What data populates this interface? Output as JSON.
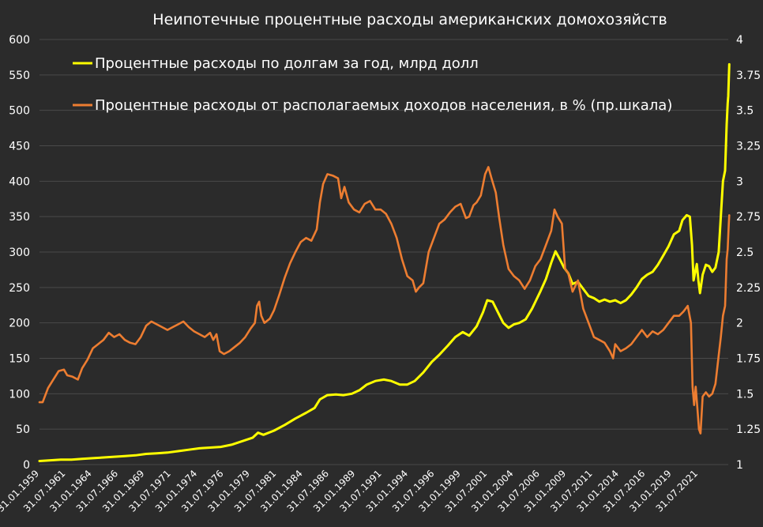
{
  "chart_data": {
    "type": "line",
    "title": "Неипотечные процентные расходы американских домохозяйств",
    "grid": true,
    "legend_placement": "top-left",
    "y_left": {
      "min": 0,
      "max": 600,
      "ticks": [
        "0",
        "50",
        "100",
        "150",
        "200",
        "250",
        "300",
        "350",
        "400",
        "450",
        "500",
        "550",
        "600"
      ]
    },
    "y_right": {
      "min": 1,
      "max": 4,
      "ticks": [
        "1",
        "1.25",
        "1.5",
        "1.75",
        "2",
        "2.25",
        "2.5",
        "2.75",
        "3",
        "3.25",
        "3.5",
        "3.75",
        "4"
      ]
    },
    "x_range": [
      1959.0,
      2023.6
    ],
    "x_tick_labels": [
      "31.01.1959",
      "31.07.1961",
      "31.01.1964",
      "31.07.1966",
      "31.01.1969",
      "31.07.1971",
      "31.01.1974",
      "31.07.1976",
      "31.01.1979",
      "31.07.1981",
      "31.01.1984",
      "31.07.1986",
      "31.01.1989",
      "31.07.1991",
      "31.01.1994",
      "31.07.1996",
      "31.01.1999",
      "31.07.2001",
      "31.01.2004",
      "31.07.2006",
      "31.01.2009",
      "31.07.2011",
      "31.01.2014",
      "31.07.2016",
      "31.01.2019",
      "31.07.2021"
    ],
    "series": [
      {
        "name": "Процентные расходы по долгам за год, млрд долл",
        "color": "#ffff00",
        "axis": "left",
        "points": [
          [
            1959.0,
            5
          ],
          [
            1960,
            6
          ],
          [
            1961,
            7
          ],
          [
            1962,
            7
          ],
          [
            1963,
            8
          ],
          [
            1964,
            9
          ],
          [
            1965,
            10
          ],
          [
            1966,
            11
          ],
          [
            1967,
            12
          ],
          [
            1968,
            13
          ],
          [
            1969,
            15
          ],
          [
            1970,
            16
          ],
          [
            1971,
            17
          ],
          [
            1972,
            19
          ],
          [
            1973,
            21
          ],
          [
            1974,
            23
          ],
          [
            1975,
            24
          ],
          [
            1976,
            25
          ],
          [
            1977,
            28
          ],
          [
            1978,
            33
          ],
          [
            1979,
            38
          ],
          [
            1979.5,
            45
          ],
          [
            1980,
            42
          ],
          [
            1981,
            48
          ],
          [
            1982,
            56
          ],
          [
            1983,
            65
          ],
          [
            1984,
            73
          ],
          [
            1984.8,
            80
          ],
          [
            1985.3,
            92
          ],
          [
            1986,
            98
          ],
          [
            1986.8,
            99
          ],
          [
            1987.5,
            98
          ],
          [
            1988.3,
            100
          ],
          [
            1989,
            105
          ],
          [
            1989.7,
            113
          ],
          [
            1990.5,
            118
          ],
          [
            1991.3,
            120
          ],
          [
            1992,
            118
          ],
          [
            1992.8,
            113
          ],
          [
            1993.5,
            113
          ],
          [
            1994.2,
            118
          ],
          [
            1995,
            130
          ],
          [
            1995.8,
            145
          ],
          [
            1996.5,
            155
          ],
          [
            1997.3,
            168
          ],
          [
            1998,
            180
          ],
          [
            1998.7,
            187
          ],
          [
            1999.3,
            182
          ],
          [
            2000,
            195
          ],
          [
            2000.6,
            215
          ],
          [
            2001,
            232
          ],
          [
            2001.5,
            230
          ],
          [
            2002,
            215
          ],
          [
            2002.5,
            200
          ],
          [
            2003,
            193
          ],
          [
            2003.5,
            198
          ],
          [
            2004,
            200
          ],
          [
            2004.6,
            205
          ],
          [
            2005.2,
            220
          ],
          [
            2006,
            245
          ],
          [
            2006.5,
            262
          ],
          [
            2007,
            285
          ],
          [
            2007.4,
            301
          ],
          [
            2007.8,
            290
          ],
          [
            2008.2,
            278
          ],
          [
            2008.6,
            270
          ],
          [
            2009,
            255
          ],
          [
            2009.5,
            258
          ],
          [
            2010,
            248
          ],
          [
            2010.5,
            238
          ],
          [
            2011,
            235
          ],
          [
            2011.5,
            230
          ],
          [
            2012,
            233
          ],
          [
            2012.5,
            230
          ],
          [
            2013,
            232
          ],
          [
            2013.5,
            228
          ],
          [
            2014,
            232
          ],
          [
            2014.5,
            240
          ],
          [
            2015,
            250
          ],
          [
            2015.5,
            262
          ],
          [
            2016,
            268
          ],
          [
            2016.5,
            272
          ],
          [
            2017,
            282
          ],
          [
            2017.5,
            295
          ],
          [
            2018,
            308
          ],
          [
            2018.5,
            325
          ],
          [
            2019,
            330
          ],
          [
            2019.3,
            345
          ],
          [
            2019.7,
            352
          ],
          [
            2020,
            350
          ],
          [
            2020.2,
            310
          ],
          [
            2020.35,
            260
          ],
          [
            2020.5,
            272
          ],
          [
            2020.65,
            283
          ],
          [
            2020.8,
            260
          ],
          [
            2020.95,
            242
          ],
          [
            2021.2,
            268
          ],
          [
            2021.5,
            282
          ],
          [
            2021.8,
            280
          ],
          [
            2022.1,
            272
          ],
          [
            2022.4,
            278
          ],
          [
            2022.7,
            300
          ],
          [
            2022.9,
            350
          ],
          [
            2023.1,
            400
          ],
          [
            2023.3,
            415
          ],
          [
            2023.45,
            480
          ],
          [
            2023.55,
            510
          ],
          [
            2023.6,
            520
          ],
          [
            2023.7,
            565
          ]
        ]
      },
      {
        "name": "Процентные расходы от располагаемых доходов населения, в % (пр.шкала)",
        "color": "#ed7d31",
        "axis": "right",
        "points": [
          [
            1959.0,
            1.44
          ],
          [
            1959.3,
            1.44
          ],
          [
            1959.8,
            1.54
          ],
          [
            1960.3,
            1.6
          ],
          [
            1960.8,
            1.66
          ],
          [
            1961.3,
            1.67
          ],
          [
            1961.6,
            1.63
          ],
          [
            1962.1,
            1.62
          ],
          [
            1962.6,
            1.6
          ],
          [
            1963,
            1.68
          ],
          [
            1963.5,
            1.74
          ],
          [
            1964,
            1.82
          ],
          [
            1964.5,
            1.85
          ],
          [
            1965,
            1.88
          ],
          [
            1965.5,
            1.93
          ],
          [
            1966,
            1.9
          ],
          [
            1966.5,
            1.92
          ],
          [
            1967,
            1.88
          ],
          [
            1967.5,
            1.86
          ],
          [
            1968,
            1.85
          ],
          [
            1968.5,
            1.9
          ],
          [
            1969,
            1.98
          ],
          [
            1969.5,
            2.01
          ],
          [
            1970,
            1.99
          ],
          [
            1970.5,
            1.97
          ],
          [
            1971,
            1.95
          ],
          [
            1971.5,
            1.97
          ],
          [
            1972,
            1.99
          ],
          [
            1972.5,
            2.01
          ],
          [
            1973,
            1.97
          ],
          [
            1973.5,
            1.94
          ],
          [
            1974,
            1.92
          ],
          [
            1974.5,
            1.9
          ],
          [
            1975,
            1.93
          ],
          [
            1975.3,
            1.88
          ],
          [
            1975.6,
            1.92
          ],
          [
            1975.9,
            1.8
          ],
          [
            1976.3,
            1.78
          ],
          [
            1976.8,
            1.8
          ],
          [
            1977.3,
            1.83
          ],
          [
            1977.8,
            1.86
          ],
          [
            1978.3,
            1.9
          ],
          [
            1978.8,
            1.96
          ],
          [
            1979.2,
            2.0
          ],
          [
            1979.4,
            2.12
          ],
          [
            1979.6,
            2.15
          ],
          [
            1979.8,
            2.05
          ],
          [
            1980.1,
            2.0
          ],
          [
            1980.6,
            2.03
          ],
          [
            1981,
            2.09
          ],
          [
            1981.5,
            2.2
          ],
          [
            1982,
            2.32
          ],
          [
            1982.5,
            2.42
          ],
          [
            1983,
            2.5
          ],
          [
            1983.5,
            2.57
          ],
          [
            1984,
            2.6
          ],
          [
            1984.5,
            2.58
          ],
          [
            1985,
            2.66
          ],
          [
            1985.3,
            2.85
          ],
          [
            1985.6,
            2.98
          ],
          [
            1986,
            3.05
          ],
          [
            1986.5,
            3.04
          ],
          [
            1987,
            3.02
          ],
          [
            1987.3,
            2.88
          ],
          [
            1987.6,
            2.96
          ],
          [
            1988,
            2.85
          ],
          [
            1988.5,
            2.8
          ],
          [
            1989,
            2.78
          ],
          [
            1989.5,
            2.84
          ],
          [
            1990,
            2.86
          ],
          [
            1990.5,
            2.8
          ],
          [
            1991,
            2.8
          ],
          [
            1991.5,
            2.77
          ],
          [
            1992,
            2.7
          ],
          [
            1992.5,
            2.6
          ],
          [
            1993,
            2.45
          ],
          [
            1993.5,
            2.33
          ],
          [
            1994,
            2.3
          ],
          [
            1994.3,
            2.22
          ],
          [
            1994.6,
            2.25
          ],
          [
            1995,
            2.28
          ],
          [
            1995.5,
            2.5
          ],
          [
            1996,
            2.6
          ],
          [
            1996.5,
            2.7
          ],
          [
            1997,
            2.73
          ],
          [
            1997.5,
            2.78
          ],
          [
            1998,
            2.82
          ],
          [
            1998.5,
            2.84
          ],
          [
            1999,
            2.74
          ],
          [
            1999.3,
            2.75
          ],
          [
            1999.7,
            2.83
          ],
          [
            2000,
            2.85
          ],
          [
            2000.4,
            2.9
          ],
          [
            2000.8,
            3.05
          ],
          [
            2001.1,
            3.1
          ],
          [
            2001.4,
            3.02
          ],
          [
            2001.8,
            2.92
          ],
          [
            2002.1,
            2.75
          ],
          [
            2002.5,
            2.55
          ],
          [
            2003,
            2.38
          ],
          [
            2003.5,
            2.33
          ],
          [
            2004,
            2.3
          ],
          [
            2004.5,
            2.24
          ],
          [
            2005,
            2.3
          ],
          [
            2005.5,
            2.4
          ],
          [
            2006,
            2.45
          ],
          [
            2006.5,
            2.55
          ],
          [
            2007,
            2.65
          ],
          [
            2007.3,
            2.8
          ],
          [
            2007.6,
            2.75
          ],
          [
            2008,
            2.7
          ],
          [
            2008.3,
            2.38
          ],
          [
            2008.6,
            2.35
          ],
          [
            2009,
            2.22
          ],
          [
            2009.5,
            2.3
          ],
          [
            2010,
            2.1
          ],
          [
            2010.5,
            2.0
          ],
          [
            2011,
            1.9
          ],
          [
            2011.5,
            1.88
          ],
          [
            2012,
            1.86
          ],
          [
            2012.5,
            1.8
          ],
          [
            2012.8,
            1.75
          ],
          [
            2013,
            1.85
          ],
          [
            2013.5,
            1.8
          ],
          [
            2014,
            1.82
          ],
          [
            2014.5,
            1.85
          ],
          [
            2015,
            1.9
          ],
          [
            2015.5,
            1.95
          ],
          [
            2016,
            1.9
          ],
          [
            2016.5,
            1.94
          ],
          [
            2017,
            1.92
          ],
          [
            2017.5,
            1.95
          ],
          [
            2018,
            2.0
          ],
          [
            2018.5,
            2.05
          ],
          [
            2019,
            2.05
          ],
          [
            2019.4,
            2.08
          ],
          [
            2019.8,
            2.12
          ],
          [
            2020.1,
            2.0
          ],
          [
            2020.25,
            1.55
          ],
          [
            2020.4,
            1.42
          ],
          [
            2020.55,
            1.55
          ],
          [
            2020.7,
            1.4
          ],
          [
            2020.85,
            1.25
          ],
          [
            2021,
            1.22
          ],
          [
            2021.2,
            1.48
          ],
          [
            2021.5,
            1.51
          ],
          [
            2021.8,
            1.48
          ],
          [
            2022.1,
            1.5
          ],
          [
            2022.4,
            1.57
          ],
          [
            2022.7,
            1.77
          ],
          [
            2022.9,
            1.9
          ],
          [
            2023.1,
            2.05
          ],
          [
            2023.3,
            2.12
          ],
          [
            2023.45,
            2.45
          ],
          [
            2023.55,
            2.52
          ],
          [
            2023.65,
            2.7
          ],
          [
            2023.7,
            2.76
          ]
        ]
      }
    ]
  }
}
